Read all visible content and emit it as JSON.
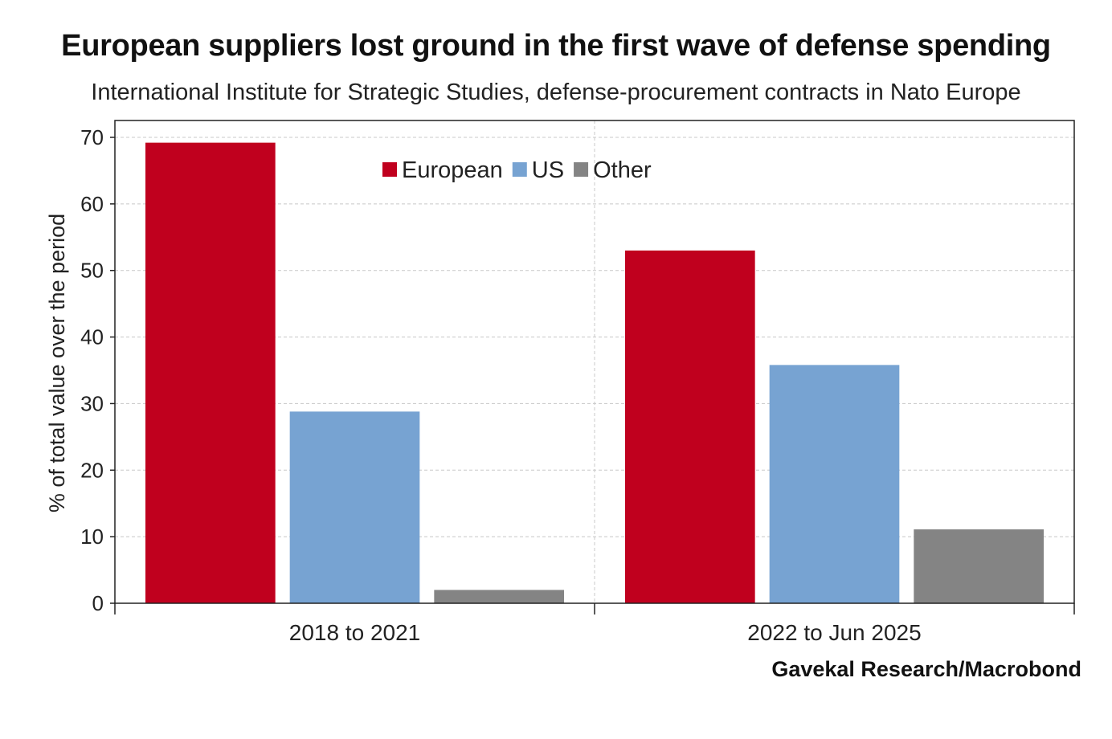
{
  "chart_data": {
    "type": "bar",
    "title": "European suppliers lost ground in the first wave of defense spending",
    "subtitle": "International Institute for Strategic Studies, defense-procurement contracts in Nato Europe",
    "xlabel": "",
    "ylabel": "% of total value over the period",
    "categories": [
      "2018 to 2021",
      "2022 to Jun 2025"
    ],
    "series": [
      {
        "name": "European",
        "color": "#c0001e",
        "values": [
          69.2,
          53.0
        ]
      },
      {
        "name": "US",
        "color": "#77a3d2",
        "values": [
          28.8,
          35.8
        ]
      },
      {
        "name": "Other",
        "color": "#848484",
        "values": [
          2.0,
          11.1
        ]
      }
    ],
    "ylim": [
      0,
      70
    ],
    "yticks": [
      0,
      10,
      20,
      30,
      40,
      50,
      60,
      70
    ],
    "grid": true,
    "legend_position": "top-center",
    "source": "Gavekal Research/Macrobond"
  }
}
